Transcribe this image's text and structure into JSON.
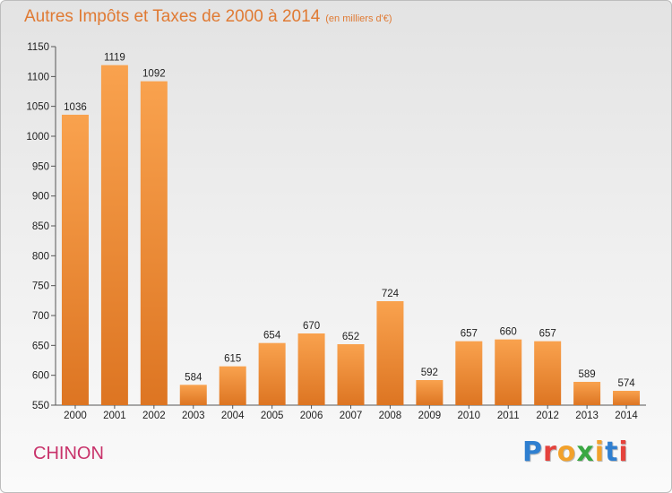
{
  "chart_data": {
    "type": "bar",
    "title": "Autres Impôts et Taxes de 2000 à 2014",
    "subtitle": "(en milliers d'€)",
    "xlabel": "",
    "ylabel": "",
    "categories": [
      "2000",
      "2001",
      "2002",
      "2003",
      "2004",
      "2005",
      "2006",
      "2007",
      "2008",
      "2009",
      "2010",
      "2011",
      "2012",
      "2013",
      "2014"
    ],
    "values": [
      1036,
      1119,
      1092,
      584,
      615,
      654,
      670,
      652,
      724,
      592,
      657,
      660,
      657,
      589,
      574
    ],
    "data_labels": [
      "1036",
      "1119",
      "1092",
      "584",
      "615",
      "654",
      "670",
      "652",
      "724",
      "592",
      "657",
      "660",
      "657",
      "589",
      "574"
    ],
    "ylim": [
      550,
      1150
    ],
    "yticks": [
      550,
      600,
      650,
      700,
      750,
      800,
      850,
      900,
      950,
      1000,
      1050,
      1100,
      1150
    ],
    "grid": false,
    "legend": "none",
    "colors": {
      "bar_light": "#f9a24e",
      "bar_dark": "#dd7522",
      "title": "#e07a33"
    }
  },
  "location": "CHINON",
  "brand": {
    "text": "Proxiti",
    "letter_colors": [
      "#2f7fd0",
      "#e5423c",
      "#f2a12b",
      "#3aa843",
      "#f2a12b",
      "#2f7fd0",
      "#e5423c"
    ]
  }
}
